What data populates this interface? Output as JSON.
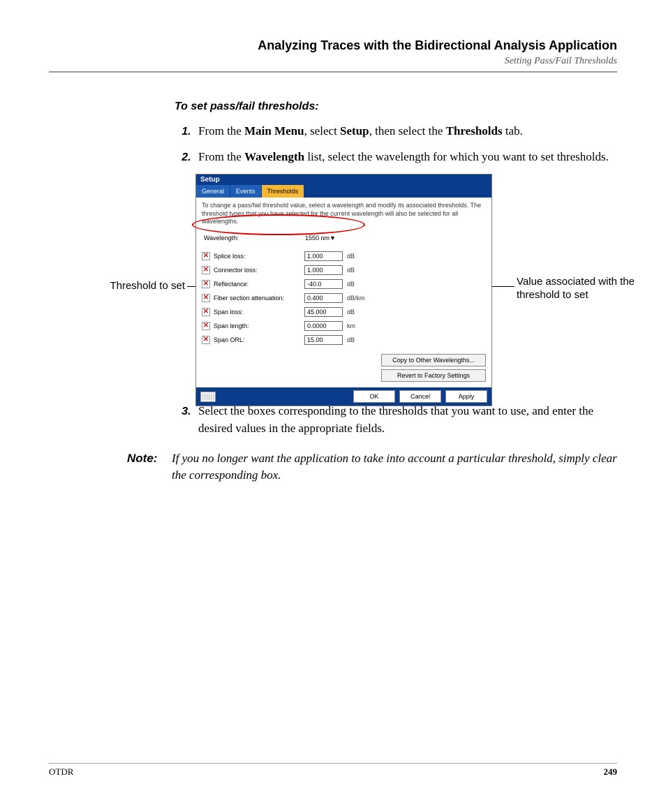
{
  "header": {
    "title": "Analyzing Traces with the Bidirectional Analysis Application",
    "subtitle": "Setting Pass/Fail Thresholds"
  },
  "section_head": "To set pass/fail thresholds:",
  "steps": {
    "s1": {
      "pre": "From the ",
      "b1": "Main Menu",
      "mid1": ", select ",
      "b2": "Setup",
      "mid2": ", then select the ",
      "b3": "Thresholds",
      "post": " tab."
    },
    "s2": {
      "pre": "From the ",
      "b1": "Wavelength",
      "post": " list, select the wavelength for which you want to set thresholds."
    },
    "s3": "Select the boxes corresponding to the thresholds that you want to use, and enter the desired values in the appropriate fields."
  },
  "callouts": {
    "left": "Threshold to set",
    "right": "Value associated with the threshold to set"
  },
  "dialog": {
    "title": "Setup",
    "tabs": {
      "general": "General",
      "events": "Events",
      "thresholds": "Thresholds"
    },
    "instruction": "To change a pass/fail threshold value, select a wavelength and modify its associated thresholds. The threshold types that you have selected for the current wavelength will also be selected for all wavelengths.",
    "wavelength_label": "Wavelength:",
    "wavelength_value": "1550 nm",
    "rows": [
      {
        "label": "Splice loss:",
        "value": "1.000",
        "unit": "dB"
      },
      {
        "label": "Connector loss:",
        "value": "1.000",
        "unit": "dB"
      },
      {
        "label": "Reflectance:",
        "value": "-40.0",
        "unit": "dB"
      },
      {
        "label": "Fiber section attenuation:",
        "value": "0.400",
        "unit": "dB/km"
      },
      {
        "label": "Span loss:",
        "value": "45.000",
        "unit": "dB"
      },
      {
        "label": "Span length:",
        "value": "0.0000",
        "unit": "km"
      },
      {
        "label": "Span ORL:",
        "value": "15.00",
        "unit": "dB"
      }
    ],
    "buttons": {
      "copy": "Copy to Other Wavelengths...",
      "revert": "Revert to Factory Settings",
      "ok": "OK",
      "cancel": "Cancel",
      "apply": "Apply"
    }
  },
  "note": {
    "label": "Note:",
    "body": "If you no longer want the application to take into account a particular threshold, simply clear the corresponding box."
  },
  "footer": {
    "left": "OTDR",
    "page": "249"
  }
}
